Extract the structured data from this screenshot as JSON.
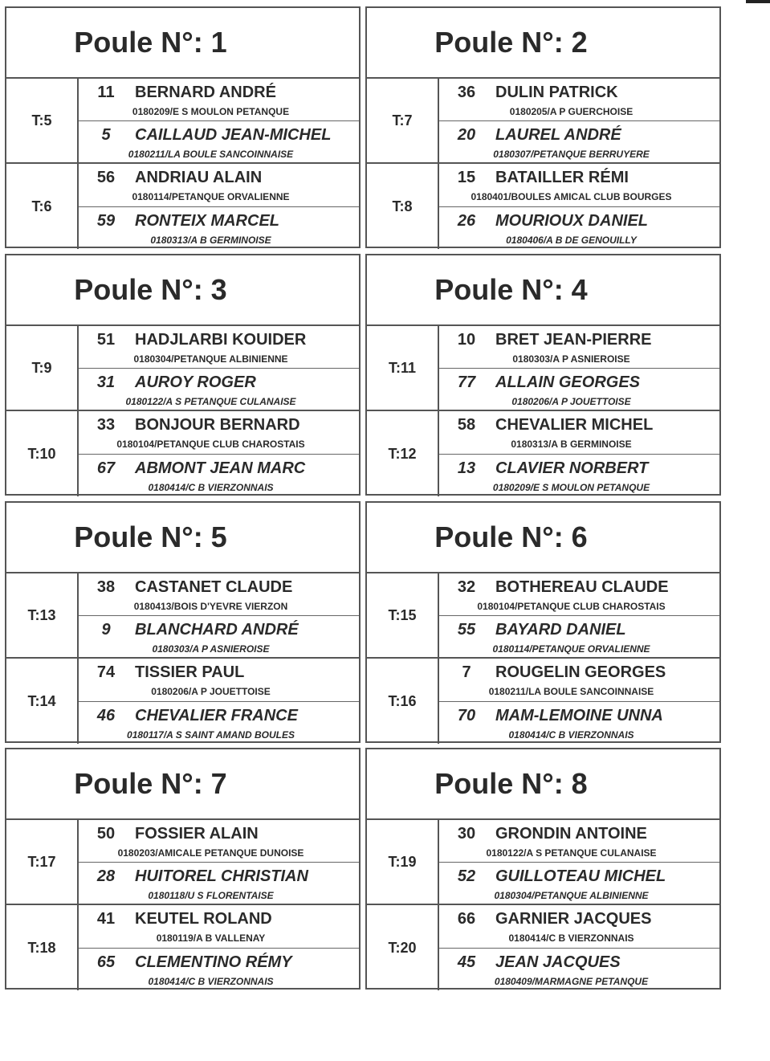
{
  "poules": [
    {
      "title": "Poule N°: 1",
      "matches": [
        {
          "table": "T:5",
          "players": [
            {
              "num": "11",
              "name": "BERNARD ANDRÉ",
              "club": "0180209/E S  MOULON PETANQUE"
            },
            {
              "num": "5",
              "name": "CAILLAUD JEAN-MICHEL",
              "club": "0180211/LA BOULE SANCOINNAISE"
            }
          ]
        },
        {
          "table": "T:6",
          "players": [
            {
              "num": "56",
              "name": "ANDRIAU ALAIN",
              "club": "0180114/PETANQUE ORVALIENNE"
            },
            {
              "num": "59",
              "name": "RONTEIX MARCEL",
              "club": "0180313/A B   GERMINOISE"
            }
          ]
        }
      ]
    },
    {
      "title": "Poule N°: 2",
      "matches": [
        {
          "table": "T:7",
          "players": [
            {
              "num": "36",
              "name": "DULIN PATRICK",
              "club": "0180205/A  P  GUERCHOISE"
            },
            {
              "num": "20",
              "name": "LAUREL ANDRÉ",
              "club": "0180307/PETANQUE BERRUYERE"
            }
          ]
        },
        {
          "table": "T:8",
          "players": [
            {
              "num": "15",
              "name": "BATAILLER RÉMI",
              "club": "0180401/BOULES AMICAL CLUB BOURGES"
            },
            {
              "num": "26",
              "name": "MOURIOUX DANIEL",
              "club": "0180406/A  B  DE GENOUILLY"
            }
          ]
        }
      ]
    },
    {
      "title": "Poule N°: 3",
      "matches": [
        {
          "table": "T:9",
          "players": [
            {
              "num": "51",
              "name": "HADJLARBI KOUIDER",
              "club": "0180304/PETANQUE ALBINIENNE"
            },
            {
              "num": "31",
              "name": "AUROY ROGER",
              "club": "0180122/A S  PETANQUE CULANAISE"
            }
          ]
        },
        {
          "table": "T:10",
          "players": [
            {
              "num": "33",
              "name": "BONJOUR BERNARD",
              "club": "0180104/PETANQUE CLUB CHAROSTAIS"
            },
            {
              "num": "67",
              "name": "ABMONT JEAN MARC",
              "club": "0180414/C  B   VIERZONNAIS"
            }
          ]
        }
      ]
    },
    {
      "title": "Poule N°: 4",
      "matches": [
        {
          "table": "T:11",
          "players": [
            {
              "num": "10",
              "name": "BRET JEAN-PIERRE",
              "club": "0180303/A  P  ASNIEROISE"
            },
            {
              "num": "77",
              "name": "ALLAIN GEORGES",
              "club": "0180206/A  P JOUETTOISE"
            }
          ]
        },
        {
          "table": "T:12",
          "players": [
            {
              "num": "58",
              "name": "CHEVALIER MICHEL",
              "club": "0180313/A B   GERMINOISE"
            },
            {
              "num": "13",
              "name": "CLAVIER NORBERT",
              "club": "0180209/E S  MOULON PETANQUE"
            }
          ]
        }
      ]
    },
    {
      "title": "Poule N°: 5",
      "matches": [
        {
          "table": "T:13",
          "players": [
            {
              "num": "38",
              "name": "CASTANET CLAUDE",
              "club": "0180413/BOIS D'YEVRE VIERZON"
            },
            {
              "num": "9",
              "name": "BLANCHARD ANDRÉ",
              "club": "0180303/A  P  ASNIEROISE"
            }
          ]
        },
        {
          "table": "T:14",
          "players": [
            {
              "num": "74",
              "name": "TISSIER PAUL",
              "club": "0180206/A  P JOUETTOISE"
            },
            {
              "num": "46",
              "name": "CHEVALIER FRANCE",
              "club": "0180117/A S  SAINT AMAND BOULES"
            }
          ]
        }
      ]
    },
    {
      "title": "Poule N°: 6",
      "matches": [
        {
          "table": "T:15",
          "players": [
            {
              "num": "32",
              "name": "BOTHEREAU CLAUDE",
              "club": "0180104/PETANQUE CLUB CHAROSTAIS"
            },
            {
              "num": "55",
              "name": "BAYARD DANIEL",
              "club": "0180114/PETANQUE ORVALIENNE"
            }
          ]
        },
        {
          "table": "T:16",
          "players": [
            {
              "num": "7",
              "name": "ROUGELIN GEORGES",
              "club": "0180211/LA BOULE SANCOINNAISE"
            },
            {
              "num": "70",
              "name": "MAM-LEMOINE UNNA",
              "club": "0180414/C  B   VIERZONNAIS"
            }
          ]
        }
      ]
    },
    {
      "title": "Poule N°: 7",
      "matches": [
        {
          "table": "T:17",
          "players": [
            {
              "num": "50",
              "name": "FOSSIER ALAIN",
              "club": "0180203/AMICALE PETANQUE DUNOISE"
            },
            {
              "num": "28",
              "name": "HUITOREL CHRISTIAN",
              "club": "0180118/U  S  FLORENTAISE"
            }
          ]
        },
        {
          "table": "T:18",
          "players": [
            {
              "num": "41",
              "name": "KEUTEL ROLAND",
              "club": "0180119/A B  VALLENAY"
            },
            {
              "num": "65",
              "name": "CLEMENTINO RÉMY",
              "club": "0180414/C  B   VIERZONNAIS"
            }
          ]
        }
      ]
    },
    {
      "title": "Poule N°: 8",
      "matches": [
        {
          "table": "T:19",
          "players": [
            {
              "num": "30",
              "name": "GRONDIN ANTOINE",
              "club": "0180122/A S  PETANQUE CULANAISE"
            },
            {
              "num": "52",
              "name": "GUILLOTEAU MICHEL",
              "club": "0180304/PETANQUE ALBINIENNE"
            }
          ]
        },
        {
          "table": "T:20",
          "players": [
            {
              "num": "66",
              "name": "GARNIER JACQUES",
              "club": "0180414/C  B   VIERZONNAIS"
            },
            {
              "num": "45",
              "name": "JEAN JACQUES",
              "club": "0180409/MARMAGNE PETANQUE"
            }
          ]
        }
      ]
    }
  ]
}
